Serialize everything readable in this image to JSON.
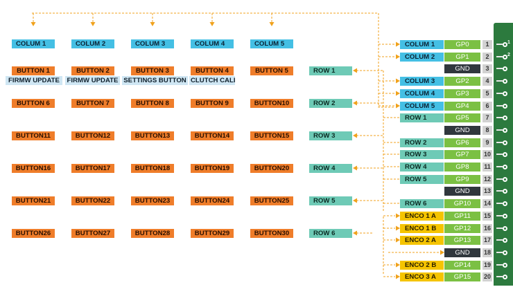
{
  "columns": [
    "COLUM 1",
    "COLUM 2",
    "COLUM 3",
    "COLUM 4",
    "COLUM 5"
  ],
  "buttons": [
    [
      "BUTTON 1",
      "BUTTON 2",
      "BUTTON 3",
      "BUTTON 4",
      "BUTTON 5"
    ],
    [
      "BUTTON 6",
      "BUTTON 7",
      "BUTTON 8",
      "BUTTON 9",
      "BUTTON10"
    ],
    [
      "BUTTON11",
      "BUTTON12",
      "BUTTON13",
      "BUTTON14",
      "BUTTON15"
    ],
    [
      "BUTTON16",
      "BUTTON17",
      "BUTTON18",
      "BUTTON19",
      "BUTTON20"
    ],
    [
      "BUTTON21",
      "BUTTON22",
      "BUTTON23",
      "BUTTON24",
      "BUTTON25"
    ],
    [
      "BUTTON26",
      "BUTTON27",
      "BUTTON28",
      "BUTTON29",
      "BUTTON30"
    ]
  ],
  "functions": [
    "FIRMW UPDATE",
    "FIRMW UPDATE",
    "SETTINGS BUTTON",
    "CLUTCH CALI"
  ],
  "rows": [
    "ROW 1",
    "ROW 2",
    "ROW 3",
    "ROW 4",
    "ROW 5",
    "ROW 6"
  ],
  "pins": [
    {
      "label": "COLUM 1",
      "kind": "col",
      "gpio": "GP0",
      "num": "1"
    },
    {
      "label": "COLUM 2",
      "kind": "col",
      "gpio": "GP1",
      "num": "2"
    },
    {
      "label": "",
      "kind": "",
      "gpio": "GND",
      "num": "3"
    },
    {
      "label": "COLUM 3",
      "kind": "col",
      "gpio": "GP2",
      "num": "4"
    },
    {
      "label": "COLUM 4",
      "kind": "col",
      "gpio": "GP3",
      "num": "5"
    },
    {
      "label": "COLUM 5",
      "kind": "col",
      "gpio": "GP4",
      "num": "6"
    },
    {
      "label": "ROW 1",
      "kind": "row",
      "gpio": "GP5",
      "num": "7"
    },
    {
      "label": "",
      "kind": "",
      "gpio": "GND",
      "num": "8"
    },
    {
      "label": "ROW 2",
      "kind": "row",
      "gpio": "GP6",
      "num": "9"
    },
    {
      "label": "ROW 3",
      "kind": "row",
      "gpio": "GP7",
      "num": "10"
    },
    {
      "label": "ROW 4",
      "kind": "row",
      "gpio": "GP8",
      "num": "11"
    },
    {
      "label": "ROW 5",
      "kind": "row",
      "gpio": "GP9",
      "num": "12"
    },
    {
      "label": "",
      "kind": "",
      "gpio": "GND",
      "num": "13"
    },
    {
      "label": "ROW 6",
      "kind": "row",
      "gpio": "GP10",
      "num": "14"
    },
    {
      "label": "ENCO 1 A",
      "kind": "enc",
      "gpio": "GP11",
      "num": "15"
    },
    {
      "label": "ENCO 1 B",
      "kind": "enc",
      "gpio": "GP12",
      "num": "16"
    },
    {
      "label": "ENCO 2 A",
      "kind": "enc",
      "gpio": "GP13",
      "num": "17"
    },
    {
      "label": "",
      "kind": "",
      "gpio": "GND",
      "num": "18"
    },
    {
      "label": "ENCO 2 B",
      "kind": "enc",
      "gpio": "GP14",
      "num": "19"
    },
    {
      "label": "ENCO 3 A",
      "kind": "enc",
      "gpio": "GP15",
      "num": "20"
    }
  ],
  "board_edge_marks": [
    "1",
    "2"
  ],
  "colors": {
    "column": "#44bfe4",
    "button": "#ef7d2a",
    "row": "#6ecab6",
    "encoder": "#f5c400",
    "gpio": "#7bc043",
    "ground": "#30373d",
    "function": "#cfe6f3",
    "wire": "#f0a21c",
    "board": "#2c7a3e"
  }
}
